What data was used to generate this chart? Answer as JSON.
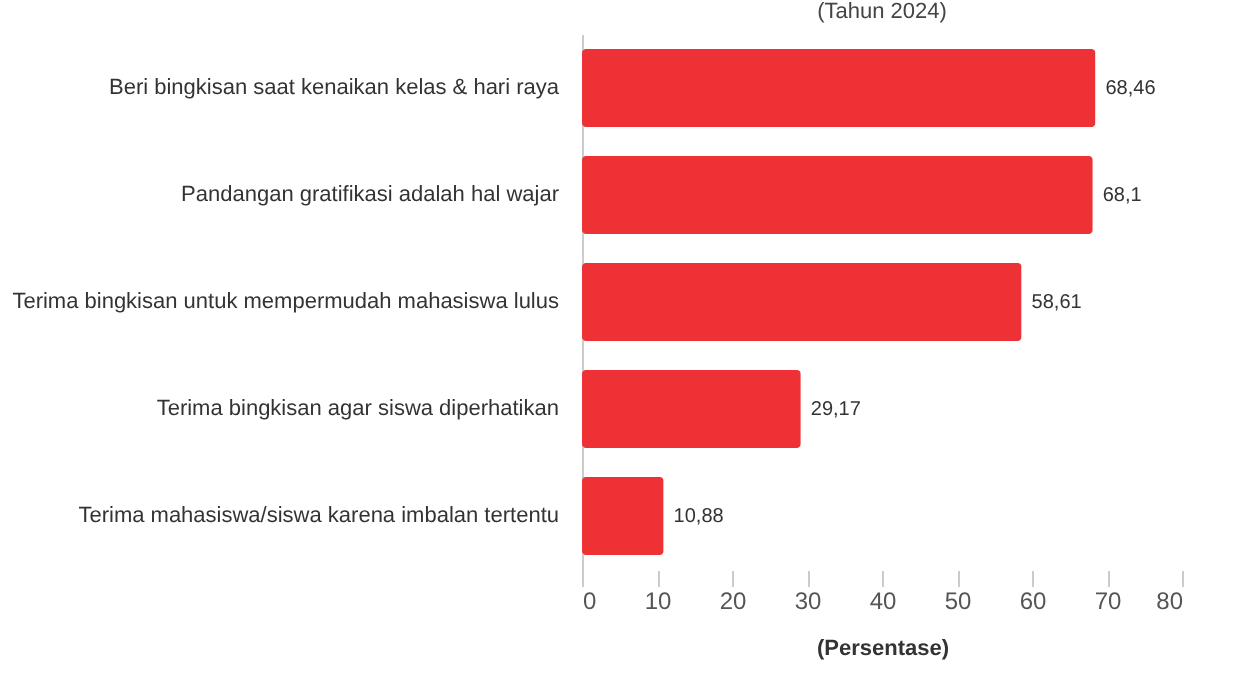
{
  "chart_data": {
    "type": "bar",
    "orientation": "horizontal",
    "subtitle": "(Tahun 2024)",
    "xlabel": "(Persentase)",
    "categories": [
      "Beri bingkisan saat kenaikan kelas & hari raya",
      "Pandangan gratifikasi adalah hal wajar",
      "Terima bingkisan untuk mempermudah mahasiswa lulus",
      "Terima bingkisan agar siswa diperhatikan",
      "Terima mahasiswa/siswa karena imbalan tertentu"
    ],
    "values": [
      68.46,
      68.1,
      58.61,
      29.17,
      10.88
    ],
    "value_labels": [
      "68,46",
      "68,1",
      "58,61",
      "29,17",
      "10,88"
    ],
    "color": "#ee3135",
    "xlim": [
      0,
      80
    ],
    "xticks": [
      0,
      10,
      20,
      30,
      40,
      50,
      60,
      70,
      80
    ],
    "grid": false
  }
}
